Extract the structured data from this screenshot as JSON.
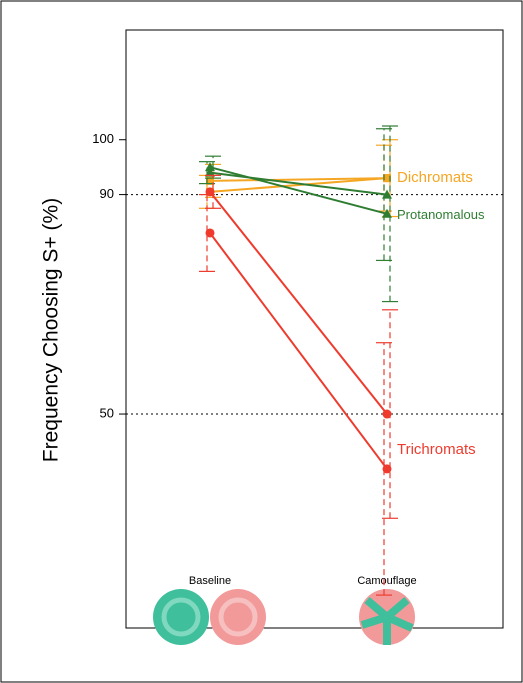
{
  "chart_data": {
    "type": "line",
    "ylabel": "Frequency Choosing S+ (%)",
    "categories": [
      "Baseline",
      "Camouflage"
    ],
    "ylim": [
      11,
      120
    ],
    "yticks": [
      50,
      90,
      100
    ],
    "hlines": [
      50,
      90
    ],
    "series": [
      {
        "name": "Dichromats",
        "color": "#f5a623",
        "marker": "square",
        "subjects": [
          {
            "values": [
              92.5,
              93
            ],
            "errors": [
              3,
              7
            ]
          },
          {
            "values": [
              90.5,
              93
            ],
            "errors": [
              3,
              6
            ]
          }
        ]
      },
      {
        "name": "Protanomalous",
        "color": "#2e7d32",
        "marker": "triangle",
        "subjects": [
          {
            "values": [
              95,
              86.5
            ],
            "errors": [
              2,
              16
            ]
          },
          {
            "values": [
              94,
              90
            ],
            "errors": [
              2,
              12
            ]
          }
        ]
      },
      {
        "name": "Trichromats",
        "color": "#ee3b2e",
        "marker": "circle",
        "subjects": [
          {
            "values": [
              90.5,
              50
            ],
            "errors": [
              3,
              19
            ]
          },
          {
            "values": [
              83,
              40
            ],
            "errors": [
              7,
              23
            ]
          }
        ]
      }
    ]
  }
}
